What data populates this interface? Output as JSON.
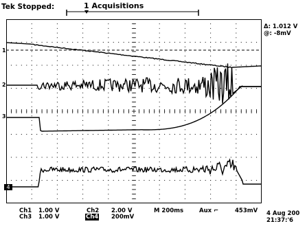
{
  "status": {
    "run_state": "Tek Stopped:",
    "acquisitions": "1 Acquisitions"
  },
  "cursor": {
    "delta": "Δ: 1.012 V",
    "at": "@: -8mV"
  },
  "channel_markers": {
    "ch1": "1",
    "ch2": "2",
    "ch3": "3",
    "ch4": "4"
  },
  "readouts": {
    "ch1_label": "Ch1",
    "ch1_scale": "1.00 V",
    "ch2_label": "Ch2",
    "ch2_scale": "2.00 V",
    "ch3_label": "Ch3",
    "ch3_scale": "1.00 V",
    "ch4_label": "Ch4",
    "ch4_scale": "200mV",
    "timebase": "M 200ms",
    "trigger_source": "Aux",
    "trigger_slope": "⌐",
    "trigger_level": "453mV"
  },
  "datetime": {
    "date": "4 Aug 200",
    "time": "21:37:'6"
  },
  "colors": {
    "trace": "#000000",
    "grid": "#000000",
    "background": "#ffffff"
  }
}
